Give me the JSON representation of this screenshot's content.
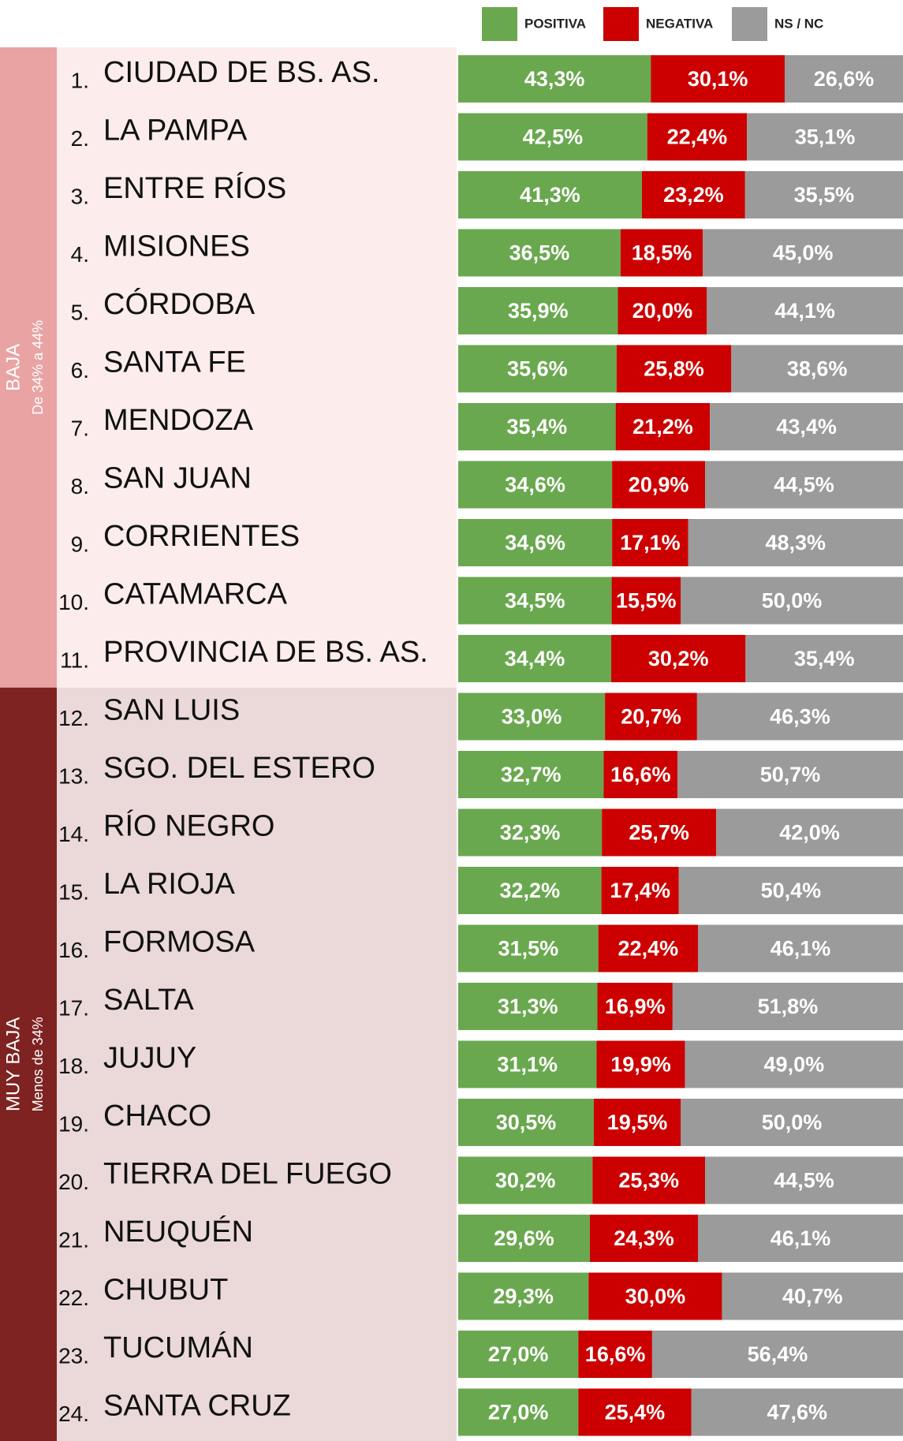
{
  "chart_data": [
    {
      "type": "bar",
      "title": "BAJA",
      "subtitle": "De 34% a 44%",
      "ranks": [
        "1.",
        "2.",
        "3.",
        "4.",
        "5.",
        "6.",
        "7.",
        "8.",
        "9.",
        "10.",
        "11."
      ],
      "categories": [
        "CIUDAD DE BS. AS.",
        "LA PAMPA",
        "ENTRE RÍOS",
        "MISIONES",
        "CÓRDOBA",
        "SANTA FE",
        "MENDOZA",
        "SAN JUAN",
        "CORRIENTES",
        "CATAMARCA",
        "PROVINCIA DE BS. AS."
      ],
      "series": [
        {
          "name": "POSITIVA",
          "color": "#6aa84f",
          "values": [
            43.3,
            42.5,
            41.3,
            36.5,
            35.9,
            35.6,
            35.4,
            34.6,
            34.6,
            34.5,
            34.4
          ],
          "value_labels": [
            "43,3%",
            "42,5%",
            "41,3%",
            "36,5%",
            "35,9%",
            "35,6%",
            "35,4%",
            "34,6%",
            "34,6%",
            "34,5%",
            "34,4%"
          ]
        },
        {
          "name": "NEGATIVA",
          "color": "#cc0000",
          "values": [
            30.1,
            22.4,
            23.2,
            18.5,
            20.0,
            25.8,
            21.2,
            20.9,
            17.1,
            15.5,
            30.2
          ],
          "value_labels": [
            "30,1%",
            "22,4%",
            "23,2%",
            "18,5%",
            "20,0%",
            "25,8%",
            "21,2%",
            "20,9%",
            "17,1%",
            "15,5%",
            "30,2%"
          ]
        },
        {
          "name": "NS / NC",
          "color": "#9b9b9b",
          "values": [
            26.6,
            35.1,
            35.5,
            45.0,
            44.1,
            38.6,
            43.4,
            44.5,
            48.3,
            50.0,
            35.4
          ],
          "value_labels": [
            "26,6%",
            "35,1%",
            "35,5%",
            "45,0%",
            "44,1%",
            "38,6%",
            "43,4%",
            "44,5%",
            "48,3%",
            "50,0%",
            "35,4%"
          ]
        }
      ]
    },
    {
      "type": "bar",
      "title": "MUY BAJA",
      "subtitle": "Menos de 34%",
      "ranks": [
        "12.",
        "13.",
        "14.",
        "15.",
        "16.",
        "17.",
        "18.",
        "19.",
        "20.",
        "21.",
        "22.",
        "23.",
        "24."
      ],
      "categories": [
        "SAN LUIS",
        "SGO. DEL ESTERO",
        "RÍO NEGRO",
        "LA RIOJA",
        "FORMOSA",
        "SALTA",
        "JUJUY",
        "CHACO",
        "TIERRA DEL FUEGO",
        "NEUQUÉN",
        "CHUBUT",
        "TUCUMÁN",
        "SANTA CRUZ"
      ],
      "series": [
        {
          "values": [
            33.0,
            32.7,
            32.3,
            32.2,
            31.5,
            31.3,
            31.1,
            30.5,
            30.2,
            29.6,
            29.3,
            27.0,
            27.0
          ],
          "value_labels": [
            "33,0%",
            "32,7%",
            "32,3%",
            "32,2%",
            "31,5%",
            "31,3%",
            "31,1%",
            "30,5%",
            "30,2%",
            "29,6%",
            "29,3%",
            "27,0%",
            "27,0%"
          ]
        },
        {
          "values": [
            20.7,
            16.6,
            25.7,
            17.4,
            22.4,
            16.9,
            19.9,
            19.5,
            25.3,
            24.3,
            30.0,
            16.6,
            25.4
          ],
          "value_labels": [
            "20,7%",
            "16,6%",
            "25,7%",
            "17,4%",
            "22,4%",
            "16,9%",
            "19,9%",
            "19,5%",
            "25,3%",
            "24,3%",
            "30,0%",
            "16,6%",
            "25,4%"
          ]
        },
        {
          "values": [
            46.3,
            50.7,
            42.0,
            50.4,
            46.1,
            51.8,
            49.0,
            50.0,
            44.5,
            46.1,
            40.7,
            56.4,
            47.6
          ],
          "value_labels": [
            "46,3%",
            "50,7%",
            "42,0%",
            "50,4%",
            "46,1%",
            "51,8%",
            "49,0%",
            "50,0%",
            "44,5%",
            "46,1%",
            "40,7%",
            "56,4%",
            "47,6%"
          ]
        }
      ]
    }
  ]
}
